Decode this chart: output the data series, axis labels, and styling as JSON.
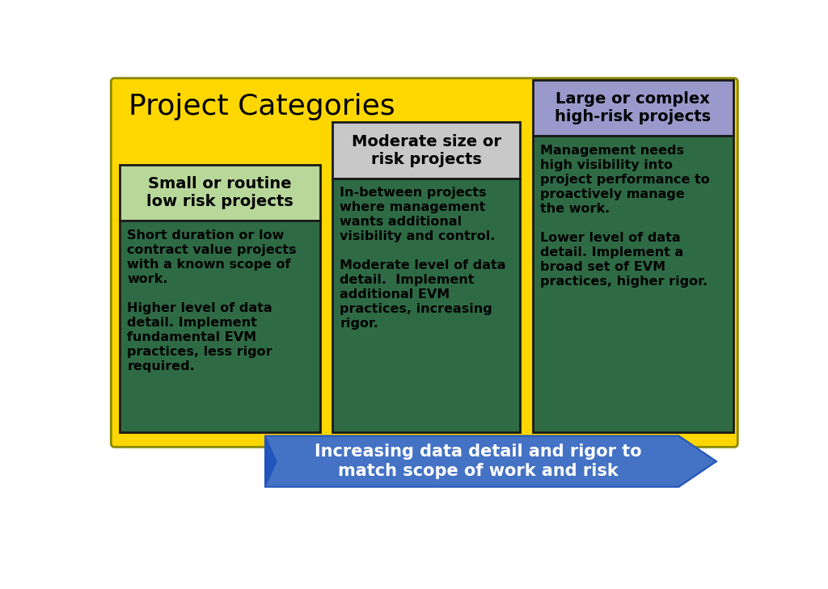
{
  "title": "Project Categories",
  "title_fontsize": 26,
  "title_color": "#000000",
  "bg_color": "#FFFFFF",
  "yellow_bg": "#FFD700",
  "yellow_gradient_bottom": "#FFC000",
  "col1_header_text": "Small or routine\nlow risk projects",
  "col2_header_text": "Moderate size or\nrisk projects",
  "col3_header_text": "Large or complex\nhigh-risk projects",
  "col1_header_bg": "#B8D89A",
  "col2_header_bg": "#C8C8C8",
  "col3_header_bg": "#9999CC",
  "col_body_bg": "#2E6B45",
  "col_border_color": "#1a1a1a",
  "col1_body_text": "Short duration or low\ncontract value projects\nwith a known scope of\nwork.\n\nHigher level of data\ndetail. Implement\nfundamental EVM\npractices, less rigor\nrequired.",
  "col2_body_text": "In-between projects\nwhere management\nwants additional\nvisibility and control.\n\nModerate level of data\ndetail.  Implement\nadditional EVM\npractices, increasing\nrigor.",
  "col3_body_text": "Management needs\nhigh visibility into\nproject performance to\nproactively manage\nthe work.\n\nLower level of data\ndetail. Implement a\nbroad set of EVM\npractices, higher rigor.",
  "arrow_text": "Increasing data detail and rigor to\nmatch scope of work and risk",
  "arrow_color": "#4472C4",
  "arrow_text_color": "#FFFFFF",
  "header_text_color": "#000000",
  "body_text_color": "#000000",
  "body_text_fontsize": 11.5,
  "header_text_fontsize": 14,
  "arrow_text_fontsize": 15
}
